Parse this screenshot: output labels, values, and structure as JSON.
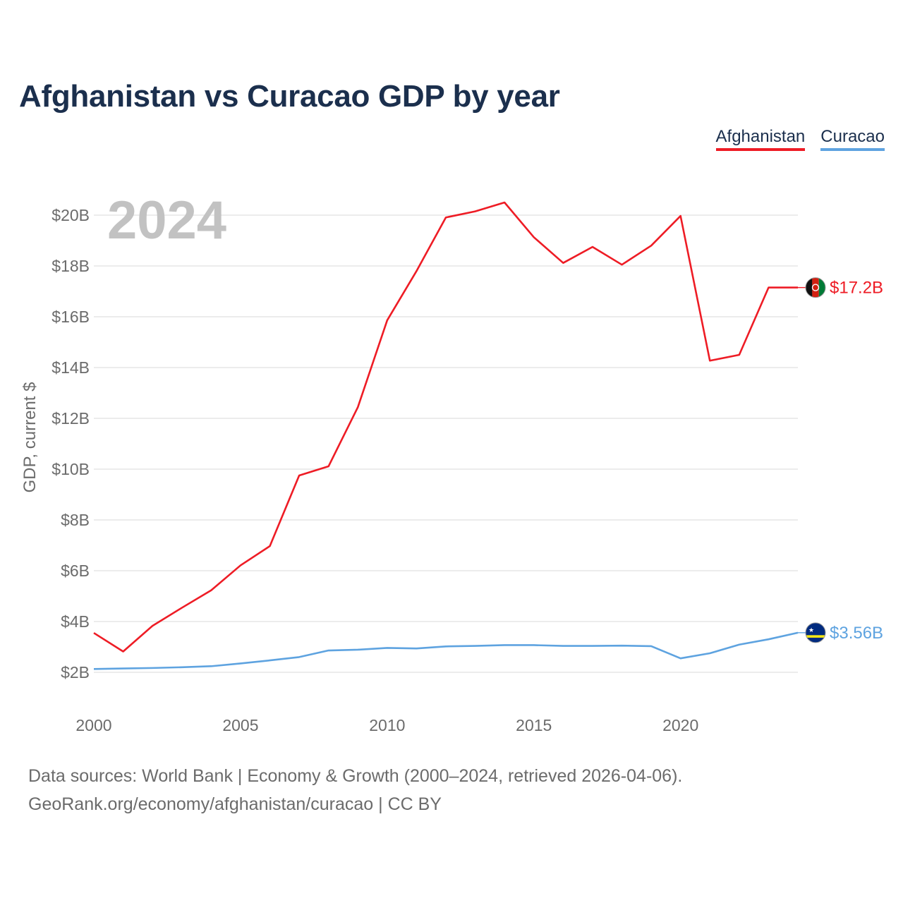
{
  "title": "Afghanistan vs Curacao GDP by year",
  "legend": [
    {
      "label": "Afghanistan",
      "color": "#ee1c25"
    },
    {
      "label": "Curacao",
      "color": "#5ea3e0"
    }
  ],
  "year_label": "2024",
  "footer": {
    "line1": "Data sources: World Bank | Economy & Growth (2000–2024, retrieved 2026-04-06).",
    "line2": "GeoRank.org/economy/afghanistan/curacao | CC BY"
  },
  "chart_data": {
    "type": "line",
    "title": "Afghanistan vs Curacao GDP by year",
    "xlabel": "",
    "ylabel": "GDP, current $",
    "xlim": [
      2000,
      2024
    ],
    "ylim": [
      2,
      20
    ],
    "x_ticks": [
      2000,
      2005,
      2010,
      2015,
      2020
    ],
    "y_ticks": [
      {
        "value": 2,
        "label": "$2B"
      },
      {
        "value": 4,
        "label": "$4B"
      },
      {
        "value": 6,
        "label": "$6B"
      },
      {
        "value": 8,
        "label": "$8B"
      },
      {
        "value": 10,
        "label": "$10B"
      },
      {
        "value": 12,
        "label": "$12B"
      },
      {
        "value": 14,
        "label": "$14B"
      },
      {
        "value": 16,
        "label": "$16B"
      },
      {
        "value": 18,
        "label": "$18B"
      },
      {
        "value": 20,
        "label": "$20B"
      }
    ],
    "grid": true,
    "legend_position": "top-right",
    "x": [
      2000,
      2001,
      2002,
      2003,
      2004,
      2005,
      2006,
      2007,
      2008,
      2009,
      2010,
      2011,
      2012,
      2013,
      2014,
      2015,
      2016,
      2017,
      2018,
      2019,
      2020,
      2021,
      2022,
      2023,
      2024
    ],
    "series": [
      {
        "name": "Afghanistan",
        "color": "#ee1c25",
        "values": [
          3.55,
          2.82,
          3.83,
          4.54,
          5.23,
          6.21,
          6.97,
          9.75,
          10.11,
          12.44,
          15.86,
          17.8,
          19.91,
          20.15,
          20.5,
          19.13,
          18.12,
          18.75,
          18.05,
          18.8,
          19.97,
          14.27,
          14.5,
          17.15,
          17.15
        ],
        "end_label": "$17.2B"
      },
      {
        "name": "Curacao",
        "color": "#5ea3e0",
        "values": [
          2.13,
          2.15,
          2.17,
          2.2,
          2.24,
          2.35,
          2.47,
          2.6,
          2.86,
          2.89,
          2.96,
          2.94,
          3.02,
          3.04,
          3.07,
          3.07,
          3.04,
          3.04,
          3.05,
          3.03,
          2.55,
          2.75,
          3.09,
          3.3,
          3.56
        ],
        "end_label": "$3.56B"
      }
    ]
  }
}
